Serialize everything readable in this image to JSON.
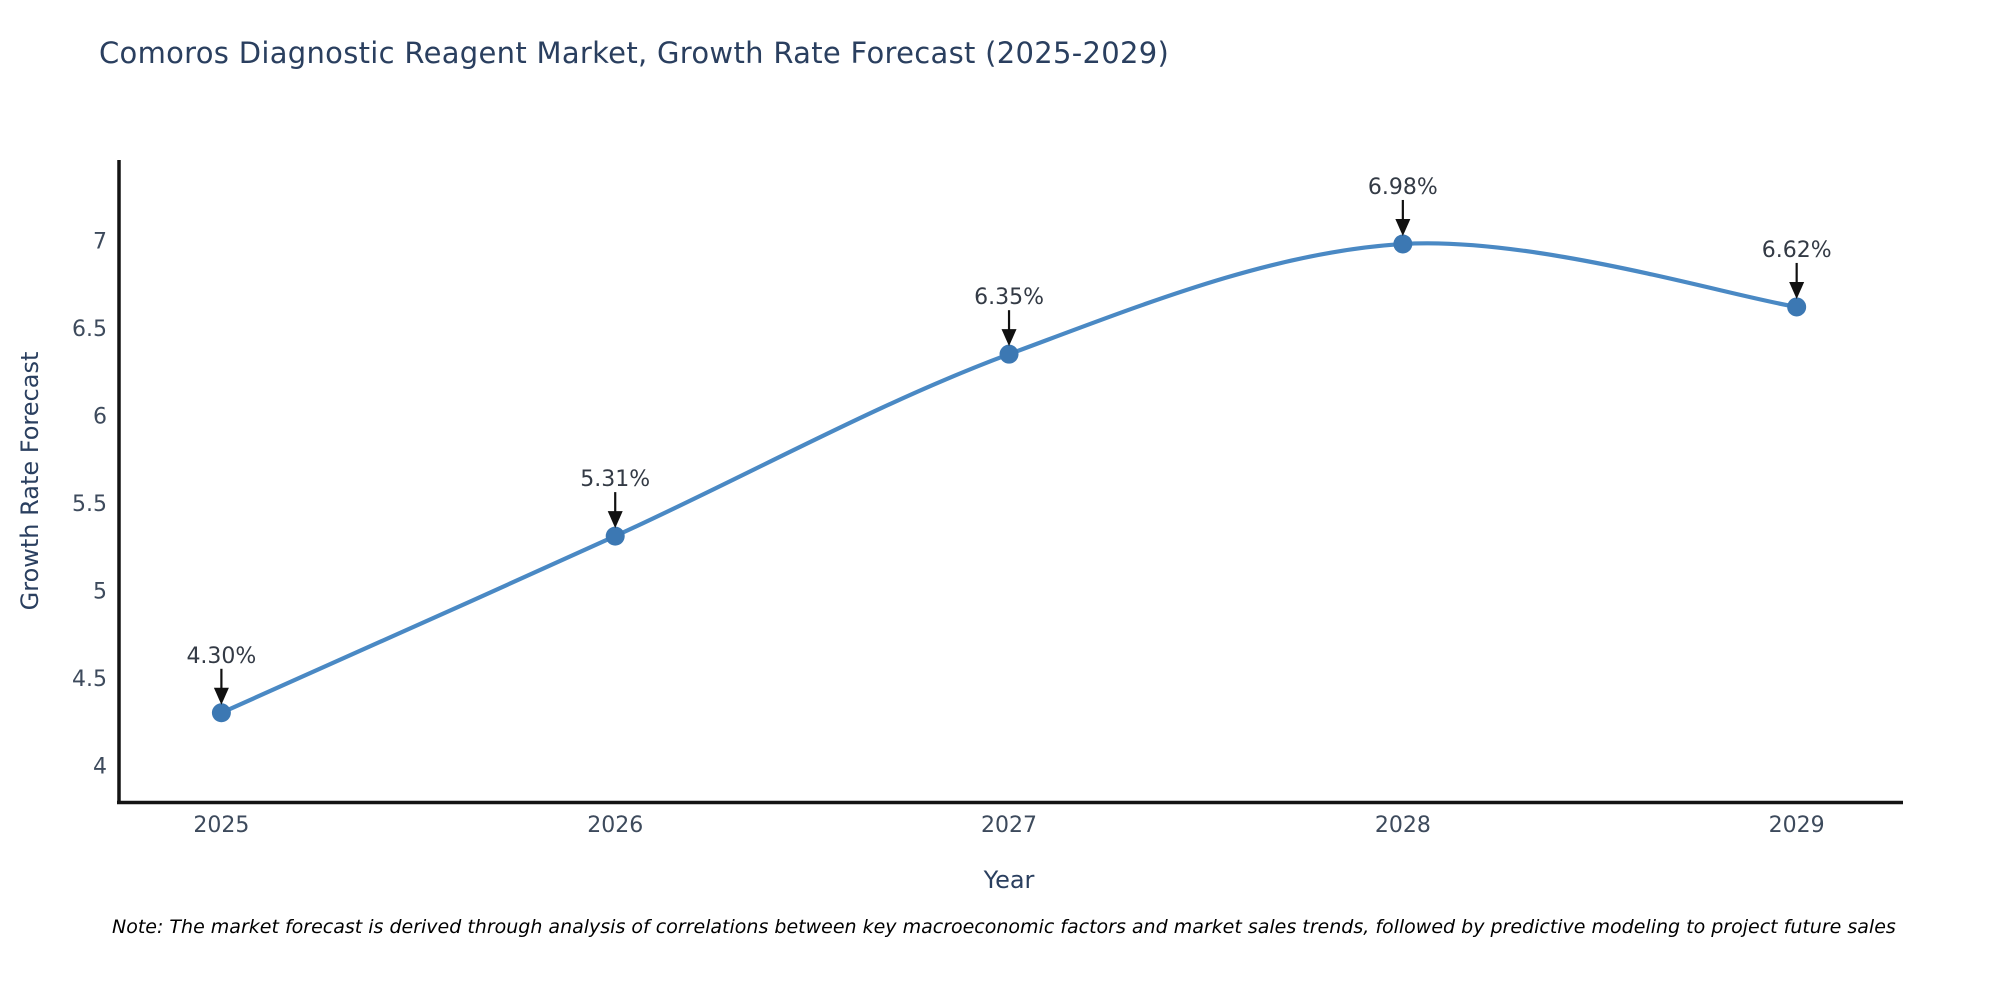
{
  "title": "Comoros Diagnostic Reagent Market, Growth Rate Forecast (2025-2029)",
  "note": "Note: The market forecast is derived through analysis of correlations between key macroeconomic factors and market sales trends, followed by predictive modeling to project future sales",
  "chart_data": {
    "type": "line",
    "title": "Comoros Diagnostic Reagent Market, Growth Rate Forecast (2025-2029)",
    "xlabel": "Year",
    "ylabel": "Growth Rate Forecast",
    "x": [
      2025,
      2026,
      2027,
      2028,
      2029
    ],
    "series": [
      {
        "name": "Growth Rate Forecast",
        "values": [
          4.3,
          5.31,
          6.35,
          6.98,
          6.62
        ],
        "point_labels": [
          "4.30%",
          "5.31%",
          "6.35%",
          "6.98%",
          "6.62%"
        ]
      }
    ],
    "x_tick_labels": [
      "2025",
      "2026",
      "2027",
      "2028",
      "2029"
    ],
    "y_ticks": [
      4,
      4.5,
      5,
      5.5,
      6,
      6.5,
      7
    ],
    "xlim": [
      2024.74,
      2029.27
    ],
    "ylim": [
      3.79,
      7.46
    ],
    "line_shape": "spline",
    "grid": false,
    "legend_position": "none",
    "colors": {
      "line": "#4a89c4",
      "marker": "#3c78b3",
      "axis": "#141414",
      "text": "#2a3f5f",
      "tick_text": "#3d4a5c",
      "annotation_text": "#333a45",
      "annotation_arrow": "#111111",
      "background": "#ffffff"
    }
  }
}
